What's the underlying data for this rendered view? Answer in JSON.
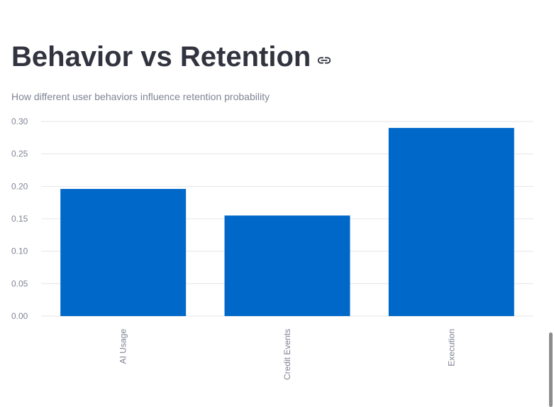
{
  "header": {
    "title": "Behavior vs Retention",
    "subtitle": "How different user behaviors influence retention probability"
  },
  "icons": {
    "title_link": "link-icon"
  },
  "colors": {
    "bar": "#0068c9",
    "grid": "#e6e6ea",
    "text": "#31333f",
    "muted": "#808495",
    "scrollbar": "#8c8c8c"
  },
  "chart_data": {
    "type": "bar",
    "categories": [
      "AI Usage",
      "Credit Events",
      "Execution"
    ],
    "values": [
      0.196,
      0.155,
      0.29
    ],
    "title": "",
    "xlabel": "",
    "ylabel": "",
    "ylim": [
      0,
      0.3
    ],
    "yticks": [
      "0.00",
      "0.05",
      "0.10",
      "0.15",
      "0.20",
      "0.25",
      "0.30"
    ],
    "grid": true,
    "legend": "none"
  }
}
